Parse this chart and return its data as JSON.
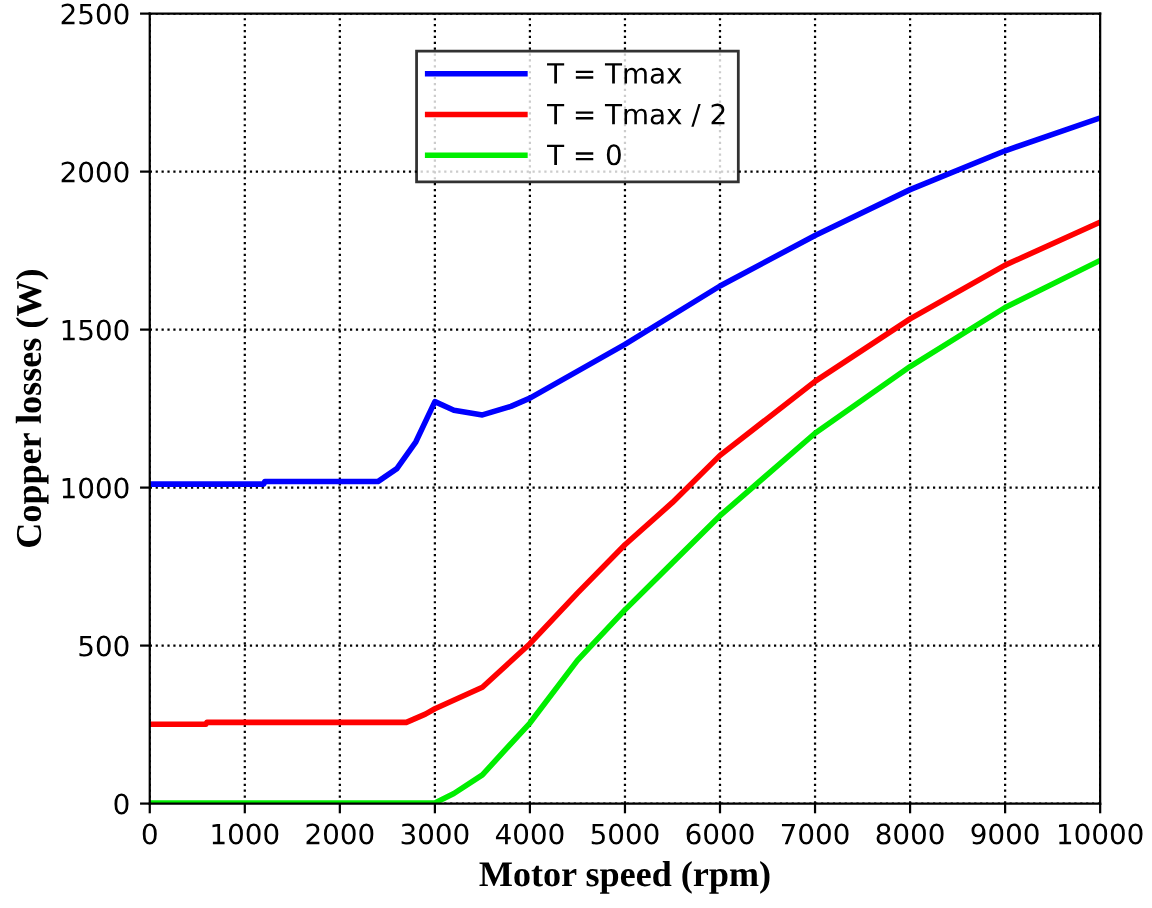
{
  "chart_data": {
    "type": "line",
    "xlabel": "Motor speed (rpm)",
    "ylabel": "Copper losses (W)",
    "xlim": [
      0,
      10000
    ],
    "ylim": [
      0,
      2500
    ],
    "xticks": [
      0,
      1000,
      2000,
      3000,
      4000,
      5000,
      6000,
      7000,
      8000,
      9000,
      10000
    ],
    "yticks": [
      0,
      500,
      1000,
      1500,
      2000,
      2500
    ],
    "grid": true,
    "legend": "top",
    "line_style": "solid",
    "marker": "none",
    "series": [
      {
        "name": "T = Tmax",
        "color": "#0000ff",
        "x": [
          0,
          1200,
          1210,
          2400,
          2600,
          2800,
          3000,
          3200,
          3500,
          3800,
          4000,
          5000,
          6000,
          7000,
          8000,
          9000,
          10000
        ],
        "values": [
          1011,
          1011,
          1019,
          1019,
          1060,
          1145,
          1272,
          1245,
          1230,
          1257,
          1283,
          1453,
          1638,
          1798,
          1943,
          2066,
          2170
        ]
      },
      {
        "name": "T = Tmax / 2",
        "color": "#ff0000",
        "x": [
          0,
          590,
          600,
          2700,
          2900,
          3000,
          3500,
          4000,
          4500,
          5000,
          5500,
          6000,
          7000,
          8000,
          9000,
          10000
        ],
        "values": [
          251,
          251,
          257,
          257,
          283,
          300,
          368,
          506,
          666,
          819,
          953,
          1102,
          1336,
          1534,
          1704,
          1840
        ]
      },
      {
        "name": "T = 0",
        "color": "#00ee00",
        "x": [
          0,
          3000,
          3200,
          3500,
          4000,
          4500,
          5000,
          5500,
          6000,
          7000,
          8000,
          9000,
          10000
        ],
        "values": [
          2,
          2,
          32,
          91,
          255,
          453,
          613,
          762,
          911,
          1172,
          1383,
          1570,
          1719
        ]
      }
    ]
  }
}
